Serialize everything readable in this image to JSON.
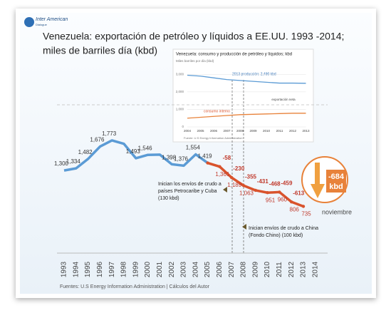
{
  "logo": [
    "Inter American",
    "Dialogue"
  ],
  "chart_data": [
    {
      "type": "line",
      "title": [
        "Venezuela: exportación de petróleo y líquidos a EE.UU. 1993 -2014;",
        "miles de barriles día (kbd)"
      ],
      "categories": [
        "1993",
        "1994",
        "1995",
        "1996",
        "1997",
        "1998",
        "1999",
        "2000",
        "2001",
        "2002",
        "2003",
        "2004",
        "2005",
        "2006",
        "2007",
        "2008",
        "2009",
        "2010",
        "2011",
        "2012",
        "2013",
        "2014"
      ],
      "series": [
        {
          "color": "#5b9bd5",
          "values": [
            1300,
            1334,
            1482,
            1676,
            1773,
            1720,
            1493,
            1546,
            1550,
            1398,
            1376,
            1554,
            1419,
            null,
            null,
            null,
            null,
            null,
            null,
            null,
            null,
            null
          ],
          "value_labels": [
            "1,300",
            "1,334",
            "1,482",
            "1,676",
            "1,773",
            null,
            "1,493",
            "1,546",
            null,
            "1,398",
            "1,376",
            "1,554",
            "1,419",
            null,
            null,
            null,
            null,
            null,
            null,
            null,
            null,
            null
          ]
        },
        {
          "color": "#d9532c",
          "markers": true,
          "values": [
            null,
            null,
            null,
            null,
            null,
            null,
            null,
            null,
            null,
            null,
            null,
            null,
            1419,
            1361,
            1189,
            1063,
            988,
            951,
            960,
            806,
            735,
            null
          ],
          "value_labels": [
            null,
            null,
            null,
            null,
            null,
            null,
            null,
            null,
            null,
            null,
            null,
            null,
            null,
            "1,361",
            "1,189",
            "1,063",
            null,
            "951",
            "960",
            "806",
            "735",
            null
          ]
        }
      ],
      "change_labels": [
        null,
        null,
        null,
        null,
        null,
        null,
        null,
        null,
        null,
        null,
        null,
        null,
        null,
        "-58",
        "-230",
        "-355",
        "-431",
        "-468",
        "-459",
        "-613",
        null,
        null
      ],
      "callout": [
        "-684",
        "kbd"
      ],
      "month_note": "noviembre",
      "annotations": [
        [
          "Inician los envíos de crudo a",
          "países Petrocaribe  y Cuba",
          "(130 kbd)"
        ],
        [
          "Inician envíos de crudo a China",
          "(Fondo Chino) (100 kbd)"
        ]
      ],
      "ylim": [
        0,
        2300
      ],
      "source": "Fuentes: U.S Energy Information Administration | Cálculos del Autor"
    },
    {
      "type": "line",
      "title": "Venezuela: consumo y producción de petróleo y líquidos; kbd",
      "y_label": "Miles barriles por día (kbd)",
      "categories": [
        "2004",
        "2005",
        "2006",
        "2007",
        "2008",
        "2009",
        "2010",
        "2011",
        "2012",
        "2013"
      ],
      "series": [
        {
          "color": "#5b9bd5",
          "values": [
            2950,
            2900,
            2800,
            2700,
            2650,
            2600,
            2550,
            2500,
            2500,
            2490
          ]
        },
        {
          "color": "#e8823a",
          "values": [
            500,
            550,
            600,
            650,
            700,
            720,
            740,
            760,
            780,
            780
          ]
        }
      ],
      "annotations": [
        "2013 producción: 2,490 kbd",
        "consumo interno",
        "exportación neta"
      ],
      "ylim": [
        0,
        3500
      ],
      "yticks": [
        0,
        {
          "value": 1000,
          "label": "1,000"
        },
        {
          "value": 2000,
          "label": "2,000"
        },
        {
          "value": 3000,
          "label": "3,000"
        }
      ],
      "grid": true,
      "source": "Fuente: U.S Energy Information Administration"
    }
  ]
}
